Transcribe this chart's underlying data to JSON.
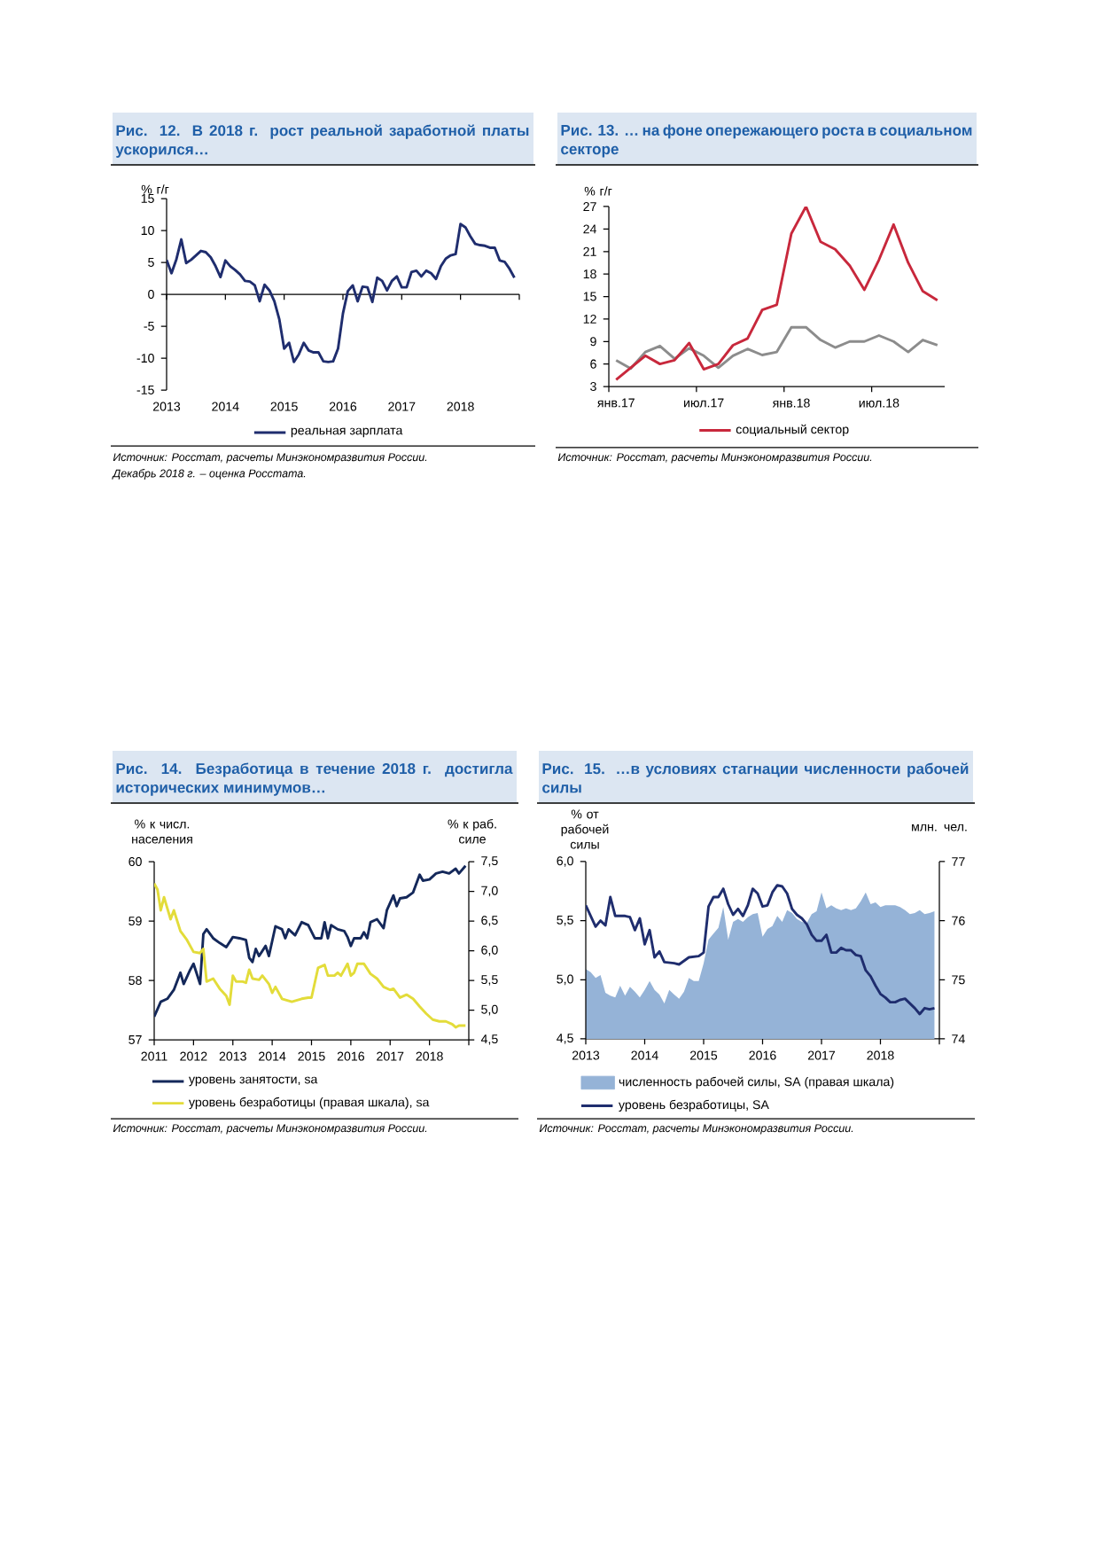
{
  "chart_data": [
    {
      "type": "line",
      "title": "Рис. 12. В 2018 г. рост реальной заработной платы ускорился…",
      "ylabel": "% г/г",
      "x": [
        "2013-01",
        "2013-02",
        "2013-03",
        "2013-04",
        "2013-05",
        "2013-06",
        "2013-07",
        "2013-08",
        "2013-09",
        "2013-10",
        "2013-11",
        "2013-12",
        "2014-01",
        "2014-02",
        "2014-03",
        "2014-04",
        "2014-05",
        "2014-06",
        "2014-07",
        "2014-08",
        "2014-09",
        "2014-10",
        "2014-11",
        "2014-12",
        "2015-01",
        "2015-02",
        "2015-03",
        "2015-04",
        "2015-05",
        "2015-06",
        "2015-07",
        "2015-08",
        "2015-09",
        "2015-10",
        "2015-11",
        "2015-12",
        "2016-01",
        "2016-02",
        "2016-03",
        "2016-04",
        "2016-05",
        "2016-06",
        "2016-07",
        "2016-08",
        "2016-09",
        "2016-10",
        "2016-11",
        "2016-12",
        "2017-01",
        "2017-02",
        "2017-03",
        "2017-04",
        "2017-05",
        "2017-06",
        "2017-07",
        "2017-08",
        "2017-09",
        "2017-10",
        "2017-11",
        "2017-12",
        "2018-01",
        "2018-02",
        "2018-03",
        "2018-04",
        "2018-05",
        "2018-06",
        "2018-07",
        "2018-08",
        "2018-09",
        "2018-10",
        "2018-11",
        "2018-12"
      ],
      "series": [
        {
          "name": "реальная зарплата",
          "color": "#1f2d6e",
          "values": [
            5.4,
            3.3,
            5.5,
            8.6,
            4.9,
            5.4,
            6.1,
            6.8,
            6.6,
            5.8,
            4.4,
            2.7,
            5.3,
            4.4,
            3.8,
            3.1,
            2.1,
            2.0,
            1.4,
            -1.1,
            1.5,
            0.6,
            -1.1,
            -3.9,
            -8.5,
            -7.6,
            -10.6,
            -9.4,
            -7.6,
            -8.8,
            -9.1,
            -9.1,
            -10.5,
            -10.6,
            -10.5,
            -8.5,
            -3.0,
            0.5,
            1.4,
            -1.1,
            1.2,
            1.1,
            -1.2,
            2.6,
            2.1,
            0.6,
            2.1,
            2.8,
            1.1,
            1.1,
            3.5,
            3.7,
            2.8,
            3.7,
            3.3,
            2.4,
            4.4,
            5.6,
            6.1,
            6.3,
            11.0,
            10.5,
            9.1,
            7.9,
            7.7,
            7.6,
            7.3,
            7.3,
            5.3,
            5.1,
            4.0,
            2.6
          ]
        }
      ],
      "xlim": [
        "2013",
        "2019"
      ],
      "xticks": [
        "2013",
        "2014",
        "2015",
        "2016",
        "2017",
        "2018",
        {
          "value": "2019",
          "label": null
        }
      ],
      "ylim": [
        -15,
        15
      ],
      "yticks": [
        -15,
        -10,
        -5,
        0,
        5,
        10,
        15
      ],
      "legend": "bottom",
      "annotations": [
        "Источник: Росстат, расчеты Минэкономразвития России.",
        "Декабрь 2018 г. – оценка Росстата."
      ]
    },
    {
      "type": "line",
      "title": "Рис. 13. … на фоне опережающего роста в социальном секторе",
      "ylabel": "% г/г",
      "categories": [
        "янв.17",
        null,
        null,
        null,
        null,
        null,
        "июл.17",
        null,
        null,
        null,
        null,
        null,
        "янв.18",
        null,
        null,
        null,
        null,
        null,
        "июл.18",
        null,
        null,
        null,
        null
      ],
      "series": [
        {
          "color": "#8c8c8c",
          "values": [
            6.5,
            5.4,
            7.6,
            8.4,
            6.7,
            8.1,
            7.1,
            5.5,
            7.1,
            8.0,
            7.2,
            7.6,
            10.9,
            10.9,
            9.2,
            8.2,
            9.0,
            9.0,
            9.8,
            9.0,
            7.6,
            9.2,
            8.5
          ]
        },
        {
          "name": "социальный сектор",
          "color": "#c8283c",
          "values": [
            3.9,
            5.5,
            7.1,
            6.0,
            6.5,
            8.8,
            5.3,
            6.0,
            8.5,
            9.4,
            13.2,
            13.9,
            23.4,
            27.0,
            22.3,
            21.3,
            19.1,
            15.9,
            19.9,
            24.6,
            19.5,
            15.7,
            14.5
          ]
        }
      ],
      "ylim": [
        3,
        27
      ],
      "yticks": [
        3,
        6,
        9,
        12,
        15,
        18,
        21,
        24,
        27
      ],
      "legend": "bottom",
      "annotations": [
        "Источник: Росстат, расчеты Минэкономразвития России."
      ]
    },
    {
      "type": "line",
      "title": "Рис. 14. Безработица в течение 2018 г. достигла исторических минимумов…",
      "ylabel": "% к числ. населения",
      "y2label": "% к раб. силе",
      "series": [
        {
          "name": "уровень занятости, sa",
          "color": "#14285a",
          "x": [
            "2011-01",
            "2011-03",
            "2011-05",
            "2011-07",
            "2011-09",
            "2011-10",
            "2011-12",
            "2012-01",
            "2012-03",
            "2012-04",
            "2012-05",
            "2012-07",
            "2012-09",
            "2012-11",
            "2013-01",
            "2013-03",
            "2013-05",
            "2013-06",
            "2013-07",
            "2013-08",
            "2013-09",
            "2013-11",
            "2013-12",
            "2014-02",
            "2014-04",
            "2014-05",
            "2014-06",
            "2014-08",
            "2014-10",
            "2014-12",
            "2015-02",
            "2015-04",
            "2015-05",
            "2015-06",
            "2015-07",
            "2015-09",
            "2015-11",
            "2015-12",
            "2016-01",
            "2016-02",
            "2016-04",
            "2016-05",
            "2016-06",
            "2016-07",
            "2016-09",
            "2016-11",
            "2016-12",
            "2017-02",
            "2017-03",
            "2017-04",
            "2017-06",
            "2017-08",
            "2017-10",
            "2017-11",
            "2018-01",
            "2018-03",
            "2018-05",
            "2018-07",
            "2018-09",
            "2018-10",
            "2018-12"
          ],
          "values": [
            57.39,
            57.64,
            57.69,
            57.84,
            58.13,
            57.94,
            58.18,
            58.28,
            57.94,
            58.78,
            58.86,
            58.71,
            58.63,
            58.56,
            58.73,
            58.71,
            58.68,
            58.38,
            58.31,
            58.53,
            58.41,
            58.58,
            58.41,
            58.91,
            58.86,
            58.71,
            58.86,
            58.76,
            58.98,
            58.93,
            58.71,
            58.71,
            58.98,
            58.71,
            58.93,
            58.86,
            58.83,
            58.73,
            58.58,
            58.71,
            58.71,
            58.81,
            58.71,
            58.98,
            59.03,
            58.88,
            59.18,
            59.43,
            59.25,
            59.38,
            59.4,
            59.48,
            59.78,
            59.68,
            59.7,
            59.8,
            59.83,
            59.8,
            59.88,
            59.8,
            59.93
          ]
        },
        {
          "name": "уровень безработицы (правая шкала), sa",
          "color": "#e3dc3a",
          "axis": "y2",
          "x": [
            "2011-01",
            "2011-02",
            "2011-03",
            "2011-04",
            "2011-06",
            "2011-07",
            "2011-09",
            "2011-11",
            "2012-01",
            "2012-03",
            "2012-04",
            "2012-05",
            "2012-07",
            "2012-09",
            "2012-11",
            "2012-12",
            "2013-01",
            "2013-02",
            "2013-04",
            "2013-05",
            "2013-06",
            "2013-07",
            "2013-09",
            "2013-10",
            "2013-12",
            "2014-01",
            "2014-02",
            "2014-04",
            "2014-07",
            "2014-10",
            "2014-12",
            "2015-01",
            "2015-03",
            "2015-05",
            "2015-06",
            "2015-08",
            "2015-09",
            "2015-10",
            "2015-12",
            "2016-01",
            "2016-02",
            "2016-03",
            "2016-05",
            "2016-07",
            "2016-09",
            "2016-11",
            "2017-01",
            "2017-02",
            "2017-04",
            "2017-06",
            "2017-08",
            "2017-10",
            "2017-12",
            "2018-02",
            "2018-04",
            "2018-06",
            "2018-08",
            "2018-09",
            "2018-10",
            "2018-12"
          ],
          "values": [
            7.13,
            7.03,
            6.68,
            6.9,
            6.53,
            6.68,
            6.33,
            6.18,
            5.98,
            5.96,
            6.03,
            5.48,
            5.53,
            5.36,
            5.24,
            5.09,
            5.58,
            5.48,
            5.48,
            5.46,
            5.68,
            5.53,
            5.51,
            5.58,
            5.44,
            5.29,
            5.39,
            5.19,
            5.14,
            5.19,
            5.21,
            5.21,
            5.71,
            5.76,
            5.58,
            5.58,
            5.63,
            5.58,
            5.78,
            5.58,
            5.63,
            5.78,
            5.78,
            5.61,
            5.53,
            5.39,
            5.34,
            5.36,
            5.21,
            5.26,
            5.19,
            5.06,
            4.94,
            4.84,
            4.81,
            4.81,
            4.76,
            4.71,
            4.74,
            4.74
          ]
        }
      ],
      "xlim": [
        "2011",
        "2019"
      ],
      "xticks": [
        "2011",
        "2012",
        "2013",
        "2014",
        "2015",
        "2016",
        "2017",
        "2018",
        {
          "value": "2019",
          "label": null
        }
      ],
      "ylim": [
        57,
        60
      ],
      "yticks": [
        57,
        58,
        59,
        60
      ],
      "y2lim": [
        4.5,
        7.5
      ],
      "y2ticks": [
        {
          "value": 4.5,
          "label": "4,5"
        },
        {
          "value": 5.0,
          "label": "5,0"
        },
        {
          "value": 5.5,
          "label": "5,5"
        },
        {
          "value": 6.0,
          "label": "6,0"
        },
        {
          "value": 6.5,
          "label": "6,5"
        },
        {
          "value": 7.0,
          "label": "7,0"
        },
        {
          "value": 7.5,
          "label": "7,5"
        }
      ],
      "legend": "bottom",
      "annotations": [
        "Источник: Росстат, расчеты Минэкономразвития России."
      ]
    },
    {
      "type": "line",
      "title": "Рис. 15. …в условиях стагнации численности рабочей силы",
      "ylabel": "% от рабочей силы",
      "y2label": "млн. чел.",
      "series": [
        {
          "name": "численность рабочей силы, SA (правая шкала)",
          "type": "area",
          "color": "#95b3d7",
          "axis": "y2",
          "x": [
            "2013-01",
            "2013-02",
            "2013-03",
            "2013-04",
            "2013-05",
            "2013-06",
            "2013-07",
            "2013-08",
            "2013-09",
            "2013-10",
            "2013-11",
            "2013-12",
            "2014-01",
            "2014-02",
            "2014-03",
            "2014-04",
            "2014-05",
            "2014-06",
            "2014-07",
            "2014-08",
            "2014-09",
            "2014-10",
            "2014-11",
            "2014-12",
            "2015-01",
            "2015-02",
            "2015-03",
            "2015-04",
            "2015-05",
            "2015-06",
            "2015-07",
            "2015-08",
            "2015-09",
            "2015-10",
            "2015-11",
            "2015-12",
            "2016-01",
            "2016-02",
            "2016-03",
            "2016-04",
            "2016-05",
            "2016-06",
            "2016-07",
            "2016-08",
            "2016-09",
            "2016-10",
            "2016-11",
            "2016-12",
            "2017-01",
            "2017-02",
            "2017-03",
            "2017-04",
            "2017-05",
            "2017-06",
            "2017-07",
            "2017-08",
            "2017-09",
            "2017-10",
            "2017-11",
            "2017-12",
            "2018-01",
            "2018-02",
            "2018-03",
            "2018-04",
            "2018-05",
            "2018-06",
            "2018-07",
            "2018-08",
            "2018-09",
            "2018-10",
            "2018-11",
            "2018-12"
          ],
          "values": [
            75.18,
            75.13,
            75.03,
            75.08,
            74.78,
            74.73,
            74.7,
            74.9,
            74.73,
            74.88,
            74.8,
            74.7,
            74.83,
            74.98,
            74.83,
            74.75,
            74.6,
            74.83,
            74.75,
            74.68,
            74.8,
            75.03,
            74.98,
            74.98,
            75.28,
            75.68,
            75.78,
            75.88,
            76.23,
            75.68,
            75.98,
            76.03,
            75.98,
            76.06,
            76.11,
            76.13,
            75.73,
            75.86,
            75.91,
            76.08,
            75.98,
            76.18,
            76.13,
            76.03,
            75.98,
            75.96,
            76.11,
            76.16,
            76.48,
            76.21,
            76.26,
            76.21,
            76.18,
            76.21,
            76.18,
            76.21,
            76.33,
            76.48,
            76.28,
            76.31,
            76.23,
            76.26,
            76.26,
            76.26,
            76.23,
            76.18,
            76.11,
            76.13,
            76.18,
            76.11,
            76.13,
            76.16
          ]
        },
        {
          "name": "уровень безработицы, SA",
          "color": "#1f2d6e",
          "x": [
            "2013-01",
            "2013-03",
            "2013-04",
            "2013-05",
            "2013-06",
            "2013-07",
            "2013-09",
            "2013-10",
            "2013-11",
            "2013-12",
            "2014-01",
            "2014-02",
            "2014-03",
            "2014-04",
            "2014-05",
            "2014-07",
            "2014-08",
            "2014-10",
            "2014-12",
            "2015-01",
            "2015-02",
            "2015-03",
            "2015-04",
            "2015-05",
            "2015-06",
            "2015-07",
            "2015-08",
            "2015-09",
            "2015-10",
            "2015-11",
            "2015-12",
            "2016-01",
            "2016-02",
            "2016-03",
            "2016-04",
            "2016-05",
            "2016-06",
            "2016-07",
            "2016-08",
            "2016-09",
            "2016-10",
            "2016-11",
            "2016-12",
            "2017-01",
            "2017-02",
            "2017-03",
            "2017-04",
            "2017-05",
            "2017-06",
            "2017-07",
            "2017-08",
            "2017-09",
            "2017-10",
            "2017-11",
            "2017-12",
            "2018-01",
            "2018-02",
            "2018-03",
            "2018-04",
            "2018-05",
            "2018-06",
            "2018-07",
            "2018-08",
            "2018-09",
            "2018-10",
            "2018-11",
            "2018-12"
          ],
          "values": [
            5.63,
            5.45,
            5.5,
            5.46,
            5.7,
            5.54,
            5.54,
            5.53,
            5.42,
            5.52,
            5.3,
            5.42,
            5.19,
            5.24,
            5.15,
            5.14,
            5.13,
            5.19,
            5.2,
            5.23,
            5.62,
            5.7,
            5.7,
            5.77,
            5.64,
            5.55,
            5.6,
            5.54,
            5.63,
            5.77,
            5.73,
            5.62,
            5.63,
            5.74,
            5.8,
            5.79,
            5.73,
            5.6,
            5.55,
            5.52,
            5.47,
            5.38,
            5.33,
            5.33,
            5.38,
            5.23,
            5.23,
            5.27,
            5.25,
            5.25,
            5.21,
            5.2,
            5.08,
            5.03,
            4.95,
            4.88,
            4.85,
            4.81,
            4.81,
            4.83,
            4.84,
            4.8,
            4.76,
            4.71,
            4.76,
            4.75,
            4.76
          ]
        }
      ],
      "xlim": [
        "2013",
        "2019"
      ],
      "xticks": [
        "2013",
        "2014",
        "2015",
        "2016",
        "2017",
        "2018",
        {
          "value": "2019",
          "label": null
        }
      ],
      "ylim": [
        4.5,
        6.0
      ],
      "yticks": [
        {
          "value": 4.5,
          "label": "4,5"
        },
        {
          "value": 5.0,
          "label": "5,0"
        },
        {
          "value": 5.5,
          "label": "5,5"
        },
        {
          "value": 6.0,
          "label": "6,0"
        }
      ],
      "y2lim": [
        74,
        77
      ],
      "y2ticks": [
        74,
        75,
        76,
        77
      ],
      "legend": "bottom",
      "annotations": [
        "Источник: Росстат, расчеты Минэкономразвития России."
      ]
    }
  ]
}
